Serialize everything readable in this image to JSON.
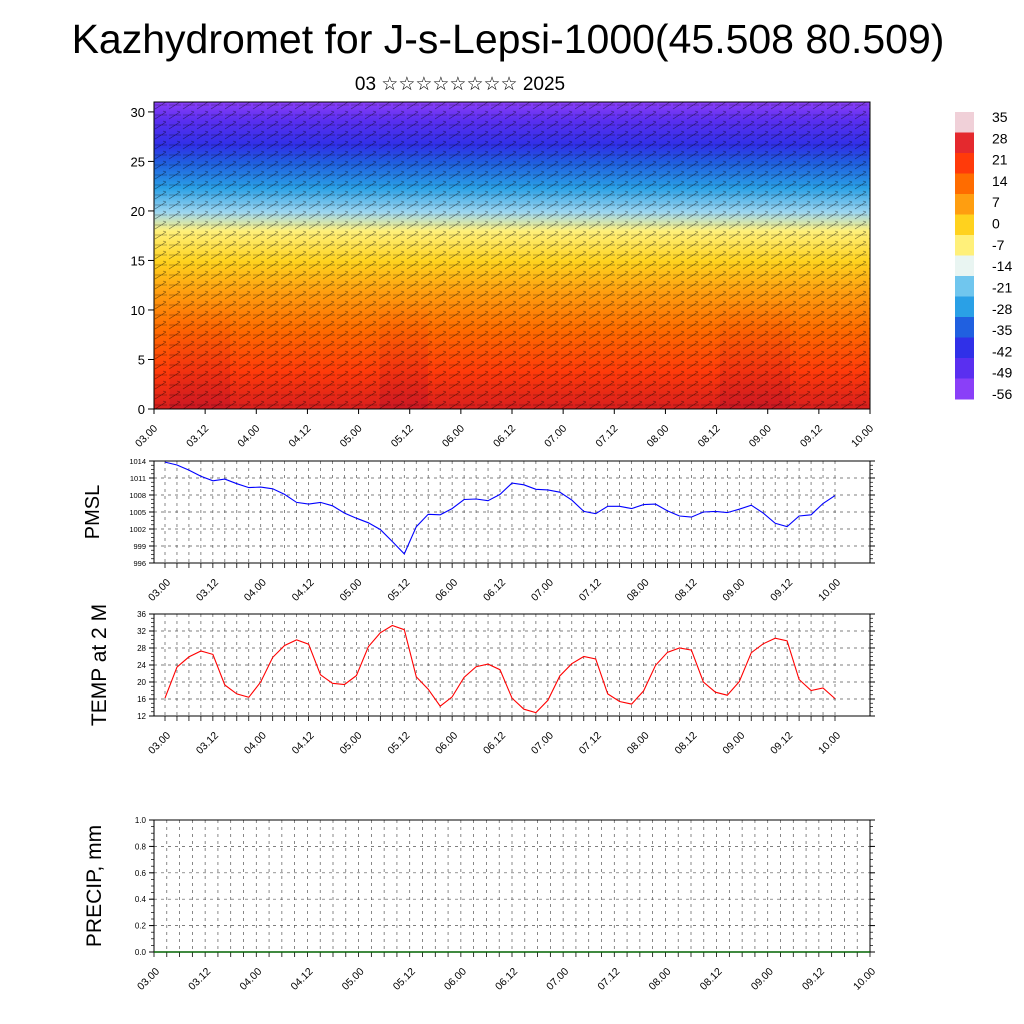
{
  "title": "Kazhydromet for J-s-Lepsi-1000(45.508 80.509)",
  "subtitle": "03 ☆☆☆☆☆☆☆☆ 2025",
  "time_labels": [
    "03.00",
    "03.12",
    "04.00",
    "04.12",
    "05.00",
    "05.12",
    "06.00",
    "06.12",
    "07.00",
    "07.12",
    "08.00",
    "08.12",
    "09.00",
    "09.12",
    "10.00"
  ],
  "colors": {
    "pmsl_line": "#0000ff",
    "temp_line": "#ff0000",
    "precip_line": "#006400",
    "grid": "#555555"
  },
  "chart_data": [
    {
      "type": "heatmap",
      "name": "cross-section",
      "y_ticks": [
        0,
        5,
        10,
        15,
        20,
        25,
        30
      ],
      "ylim": [
        0,
        31
      ],
      "x": [
        "03.00",
        "03.12",
        "04.00",
        "04.12",
        "05.00",
        "05.12",
        "06.00",
        "06.12",
        "07.00",
        "07.12",
        "08.00",
        "08.12",
        "09.00",
        "09.12",
        "10.00"
      ],
      "colorbar_labels": [
        "35",
        "28",
        "21",
        "14",
        "7",
        "0",
        "-7",
        "-14",
        "-21",
        "-28",
        "-35",
        "-42",
        "-49",
        "-56"
      ],
      "colorbar_colors": [
        "#f0d0d8",
        "#e4292e",
        "#ff3a0a",
        "#ff6c00",
        "#ff9e10",
        "#ffd21e",
        "#fff07a",
        "#e9f5f2",
        "#70c6ee",
        "#2aa0e6",
        "#2060e0",
        "#3030e8",
        "#5a2ff0",
        "#8a3ff8"
      ]
    },
    {
      "type": "line",
      "name": "pmsl",
      "ylabel": "PMSL",
      "y_ticks": [
        996,
        999,
        1002,
        1005,
        1008,
        1011,
        1014
      ],
      "ylim": [
        996,
        1014
      ],
      "x_labels": [
        "03.00",
        "03.12",
        "04.00",
        "04.12",
        "05.00",
        "05.12",
        "06.00",
        "06.12",
        "07.00",
        "07.12",
        "08.00",
        "08.12",
        "09.00",
        "09.12",
        "10.00"
      ],
      "values": [
        1013.8,
        1013.3,
        1012.4,
        1011.3,
        1010.5,
        1010.8,
        1010.0,
        1009.3,
        1009.4,
        1009.1,
        1008.1,
        1006.7,
        1006.4,
        1006.7,
        1006.1,
        1004.8,
        1003.9,
        1003.1,
        1001.9,
        999.8,
        997.6,
        1002.4,
        1004.6,
        1004.5,
        1005.6,
        1007.2,
        1007.3,
        1007.0,
        1008.1,
        1010.1,
        1009.8,
        1009.0,
        1008.9,
        1008.5,
        1007.1,
        1005.1,
        1004.7,
        1006.0,
        1006.0,
        1005.6,
        1006.3,
        1006.4,
        1005.2,
        1004.3,
        1004.1,
        1005.0,
        1005.1,
        1004.9,
        1005.5,
        1006.2,
        1004.8,
        1003.0,
        1002.4,
        1004.3,
        1004.5,
        1006.5,
        1007.9
      ]
    },
    {
      "type": "line",
      "name": "temp",
      "ylabel": "TEMP at 2 M",
      "y_ticks": [
        12,
        16,
        20,
        24,
        28,
        32,
        36
      ],
      "ylim": [
        12,
        36
      ],
      "x_labels": [
        "03.00",
        "03.12",
        "04.00",
        "04.12",
        "05.00",
        "05.12",
        "06.00",
        "06.12",
        "07.00",
        "07.12",
        "08.00",
        "08.12",
        "09.00",
        "09.12",
        "10.00"
      ],
      "values": [
        16.2,
        23.5,
        25.9,
        27.3,
        26.5,
        19.3,
        17.2,
        16.4,
        20.0,
        25.8,
        28.6,
        29.9,
        28.9,
        21.7,
        19.7,
        19.4,
        21.5,
        28.3,
        31.6,
        33.3,
        32.3,
        21.2,
        18.3,
        14.3,
        16.5,
        21.1,
        23.6,
        24.2,
        22.9,
        16.2,
        13.6,
        12.8,
        15.7,
        21.4,
        24.3,
        26.0,
        25.4,
        17.2,
        15.4,
        14.8,
        17.9,
        23.9,
        27.0,
        28.0,
        27.5,
        20.0,
        17.6,
        16.9,
        20.1,
        26.9,
        29.0,
        30.3,
        29.7,
        20.6,
        18.0,
        18.6,
        16.1
      ]
    },
    {
      "type": "line",
      "name": "precip",
      "ylabel": "PRECIP, mm",
      "y_ticks": [
        "0.0",
        "0.2",
        "0.4",
        "0.6",
        "0.8",
        "1.0"
      ],
      "ylim": [
        0,
        1
      ],
      "x_labels": [
        "03.00",
        "03.12",
        "04.00",
        "04.12",
        "05.00",
        "05.12",
        "06.00",
        "06.12",
        "07.00",
        "07.12",
        "08.00",
        "08.12",
        "09.00",
        "09.12",
        "10.00"
      ],
      "values": [
        0,
        0,
        0,
        0,
        0,
        0,
        0,
        0,
        0,
        0,
        0,
        0,
        0,
        0,
        0
      ]
    }
  ]
}
